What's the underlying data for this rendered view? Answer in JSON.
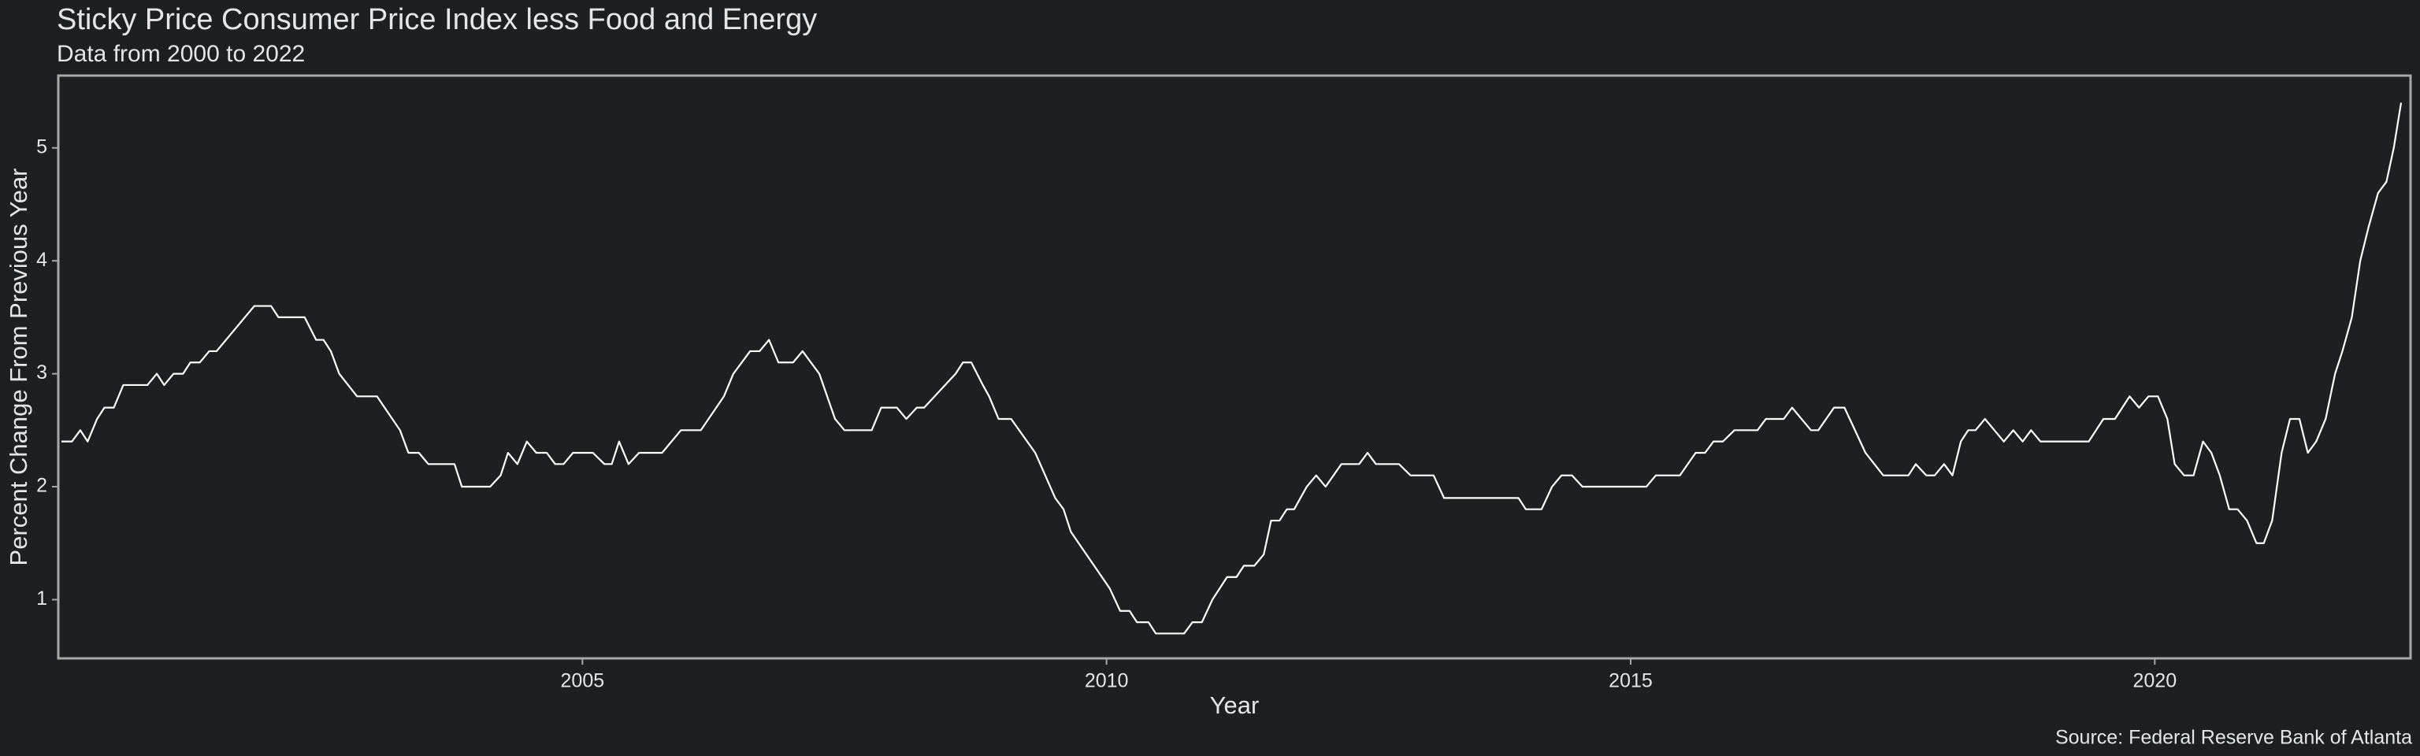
{
  "chart_data": {
    "type": "line",
    "title": "Sticky Price Consumer Price Index less Food and Energy",
    "subtitle": "Data from 2000 to 2022",
    "xlabel": "Year",
    "ylabel": "Percent Change From Previous Year",
    "caption": "Source: Federal Reserve Bank of Atlanta",
    "color": "#ffffff",
    "x": [
      2000.03,
      2000.13,
      2000.21,
      2000.28,
      2000.37,
      2000.44,
      2000.53,
      2000.62,
      2000.85,
      2000.94,
      2001.01,
      2001.1,
      2001.19,
      2001.26,
      2001.35,
      2001.44,
      2001.51,
      2001.87,
      2002.03,
      2002.1,
      2002.35,
      2002.46,
      2002.53,
      2002.6,
      2002.68,
      2002.85,
      2003.04,
      2003.26,
      2003.34,
      2003.44,
      2003.53,
      2003.78,
      2003.85,
      2004.12,
      2004.22,
      2004.29,
      2004.38,
      2004.47,
      2004.56,
      2004.66,
      2004.74,
      2004.82,
      2004.91,
      2005.1,
      2005.21,
      2005.28,
      2005.35,
      2005.44,
      2005.54,
      2005.76,
      2005.94,
      2006.13,
      2006.35,
      2006.44,
      2006.6,
      2006.69,
      2006.78,
      2006.87,
      2007.01,
      2007.1,
      2007.26,
      2007.41,
      2007.5,
      2007.76,
      2007.85,
      2008.0,
      2008.09,
      2008.19,
      2008.26,
      2008.56,
      2008.63,
      2008.71,
      2008.82,
      2008.88,
      2008.97,
      2009.09,
      2009.32,
      2009.51,
      2009.59,
      2009.66,
      2010.03,
      2010.13,
      2010.22,
      2010.29,
      2010.4,
      2010.47,
      2010.74,
      2010.82,
      2010.91,
      2011.01,
      2011.15,
      2011.24,
      2011.31,
      2011.41,
      2011.5,
      2011.57,
      2011.65,
      2011.72,
      2011.79,
      2011.91,
      2012.0,
      2012.09,
      2012.24,
      2012.41,
      2012.49,
      2012.57,
      2012.79,
      2012.9,
      2013.12,
      2013.22,
      2013.93,
      2014.0,
      2014.15,
      2014.25,
      2014.34,
      2014.44,
      2014.54,
      2015.15,
      2015.24,
      2015.47,
      2015.62,
      2015.71,
      2015.79,
      2015.88,
      2015.99,
      2016.21,
      2016.29,
      2016.46,
      2016.54,
      2016.72,
      2016.79,
      2016.94,
      2017.04,
      2017.24,
      2017.41,
      2017.65,
      2017.72,
      2017.82,
      2017.9,
      2017.99,
      2018.07,
      2018.15,
      2018.22,
      2018.29,
      2018.38,
      2018.56,
      2018.65,
      2018.74,
      2018.82,
      2018.91,
      2019.37,
      2019.51,
      2019.62,
      2019.76,
      2019.85,
      2019.94,
      2020.03,
      2020.12,
      2020.19,
      2020.28,
      2020.37,
      2020.46,
      2020.54,
      2020.62,
      2020.71,
      2020.79,
      2020.88,
      2020.97,
      2021.04,
      2021.12,
      2021.21,
      2021.29,
      2021.38,
      2021.46,
      2021.54,
      2021.63,
      2021.72,
      2021.79,
      2021.88,
      2021.96,
      2022.04,
      2022.13,
      2022.21,
      2022.28,
      2022.35
    ],
    "values": [
      2.4,
      2.4,
      2.5,
      2.4,
      2.6,
      2.7,
      2.7,
      2.9,
      2.9,
      3.0,
      2.9,
      3.0,
      3.0,
      3.1,
      3.1,
      3.2,
      3.2,
      3.6,
      3.6,
      3.5,
      3.5,
      3.3,
      3.3,
      3.2,
      3.0,
      2.8,
      2.8,
      2.5,
      2.3,
      2.3,
      2.2,
      2.2,
      2.0,
      2.0,
      2.1,
      2.3,
      2.2,
      2.4,
      2.3,
      2.3,
      2.2,
      2.2,
      2.3,
      2.3,
      2.2,
      2.2,
      2.4,
      2.2,
      2.3,
      2.3,
      2.5,
      2.5,
      2.8,
      3.0,
      3.2,
      3.2,
      3.3,
      3.1,
      3.1,
      3.2,
      3.0,
      2.6,
      2.5,
      2.5,
      2.7,
      2.7,
      2.6,
      2.7,
      2.7,
      3.0,
      3.1,
      3.1,
      2.9,
      2.8,
      2.6,
      2.6,
      2.3,
      1.9,
      1.8,
      1.6,
      1.1,
      0.9,
      0.9,
      0.8,
      0.8,
      0.7,
      0.7,
      0.8,
      0.8,
      1.0,
      1.2,
      1.2,
      1.3,
      1.3,
      1.4,
      1.7,
      1.7,
      1.8,
      1.8,
      2.0,
      2.1,
      2.0,
      2.2,
      2.2,
      2.3,
      2.2,
      2.2,
      2.1,
      2.1,
      1.9,
      1.9,
      1.8,
      1.8,
      2.0,
      2.1,
      2.1,
      2.0,
      2.0,
      2.1,
      2.1,
      2.3,
      2.3,
      2.4,
      2.4,
      2.5,
      2.5,
      2.6,
      2.6,
      2.7,
      2.5,
      2.5,
      2.7,
      2.7,
      2.3,
      2.1,
      2.1,
      2.2,
      2.1,
      2.1,
      2.2,
      2.1,
      2.4,
      2.5,
      2.5,
      2.6,
      2.4,
      2.5,
      2.4,
      2.5,
      2.4,
      2.4,
      2.6,
      2.6,
      2.8,
      2.7,
      2.8,
      2.8,
      2.6,
      2.2,
      2.1,
      2.1,
      2.4,
      2.3,
      2.1,
      1.8,
      1.8,
      1.7,
      1.5,
      1.5,
      1.7,
      2.3,
      2.6,
      2.6,
      2.3,
      2.4,
      2.6,
      3.0,
      3.2,
      3.5,
      4.0,
      4.3,
      4.6,
      4.7,
      5.0,
      5.4
    ],
    "xlim": [
      2000.0,
      2022.44
    ],
    "ylim": [
      0.48,
      5.64
    ],
    "xticks": [
      2005,
      2010,
      2015,
      2020
    ],
    "yticks": [
      1,
      2,
      3,
      4,
      5
    ]
  }
}
